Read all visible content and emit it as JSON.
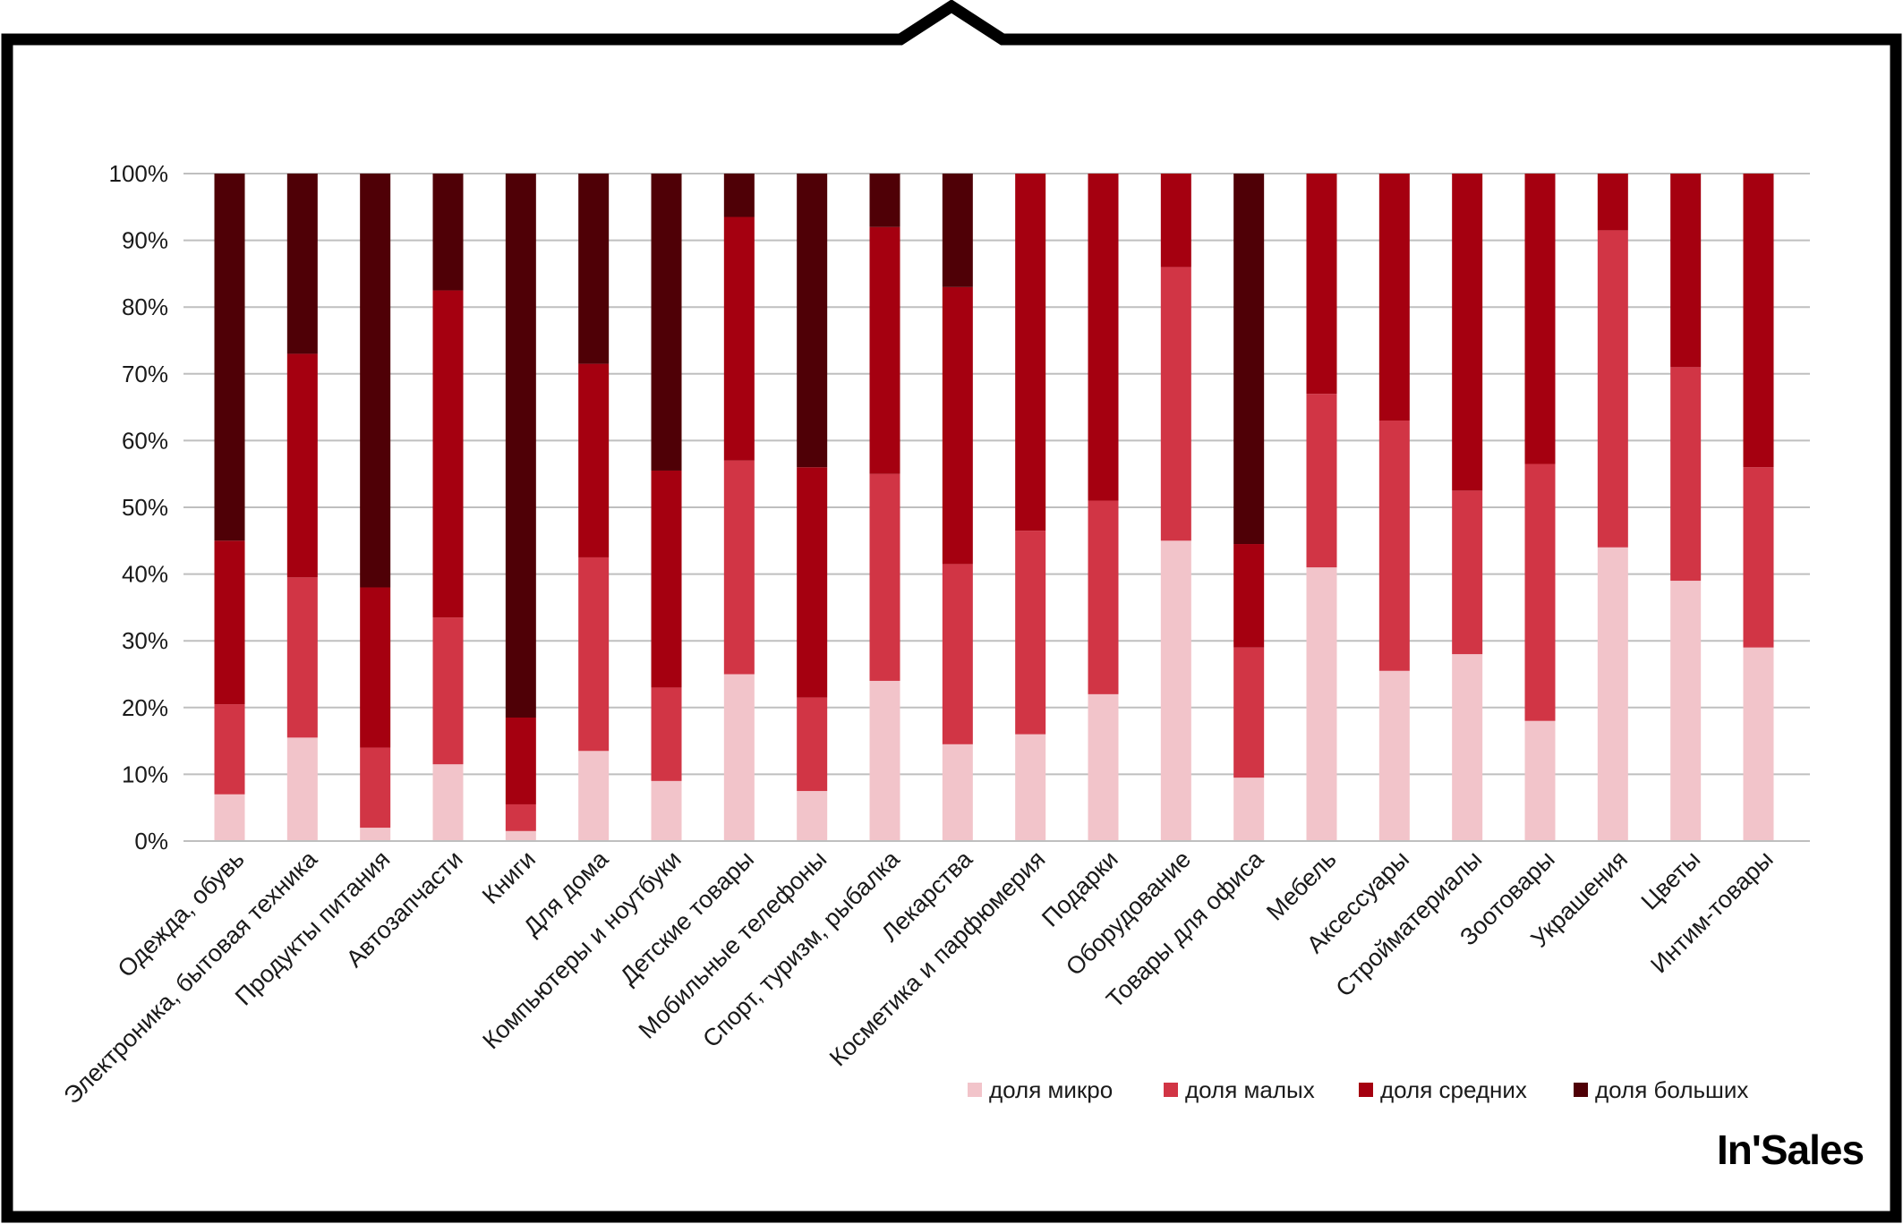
{
  "brand": {
    "logo_text": "In'Sales"
  },
  "colors": {
    "frame": "#000000",
    "grid": "#bfbfbf",
    "micro": "#f2c4ca",
    "small": "#d13545",
    "medium": "#a50010",
    "large": "#4f0006"
  },
  "chart_data": {
    "type": "bar",
    "stacked": true,
    "normalized": true,
    "title": "",
    "xlabel": "",
    "ylabel": "",
    "ylim": [
      0,
      100
    ],
    "yticks": [
      "0%",
      "10%",
      "20%",
      "30%",
      "40%",
      "50%",
      "60%",
      "70%",
      "80%",
      "90%",
      "100%"
    ],
    "grid": true,
    "legend_position": "bottom-right",
    "categories": [
      "Одежда, обувь",
      "Электроника, бытовая техника",
      "Продукты питания",
      "Автозапчасти",
      "Книги",
      "Для дома",
      "Компьютеры и ноутбуки",
      "Детские товары",
      "Мобильные телефоны",
      "Спорт, туризм, рыбалка",
      "Лекарства",
      "Косметика и парфюмерия",
      "Подарки",
      "Оборудование",
      "Товары для офиса",
      "Мебель",
      "Аксессуары",
      "Стройматериалы",
      "Зоотовары",
      "Украшения",
      "Цветы",
      "Интим-товары"
    ],
    "series": [
      {
        "name": "доля микро",
        "color": "#f2c4ca",
        "values": [
          7,
          15.5,
          2,
          11.5,
          1.5,
          13.5,
          9,
          25,
          7.5,
          24,
          14.5,
          16,
          22,
          45,
          9.5,
          41,
          25.5,
          28,
          18,
          44,
          39,
          29
        ]
      },
      {
        "name": "доля малых",
        "color": "#d13545",
        "values": [
          13.5,
          24,
          12,
          22,
          4,
          29,
          14,
          32,
          14,
          31,
          27,
          30.5,
          29,
          41,
          19.5,
          26,
          37.5,
          24.5,
          38.5,
          47.5,
          32,
          27
        ]
      },
      {
        "name": "доля средних",
        "color": "#a50010",
        "values": [
          24.5,
          33.5,
          24,
          49,
          13,
          29,
          32.5,
          36.5,
          34.5,
          37,
          41.5,
          53.5,
          49,
          14,
          15.5,
          33,
          37,
          47.5,
          43.5,
          8.5,
          29,
          44
        ]
      },
      {
        "name": "доля больших",
        "color": "#4f0006",
        "values": [
          55,
          27,
          62,
          17.5,
          81.5,
          28.5,
          44.5,
          6.5,
          44,
          8,
          17,
          0,
          0,
          0,
          55.5,
          0,
          0,
          0,
          0,
          0,
          0,
          0
        ]
      }
    ]
  }
}
